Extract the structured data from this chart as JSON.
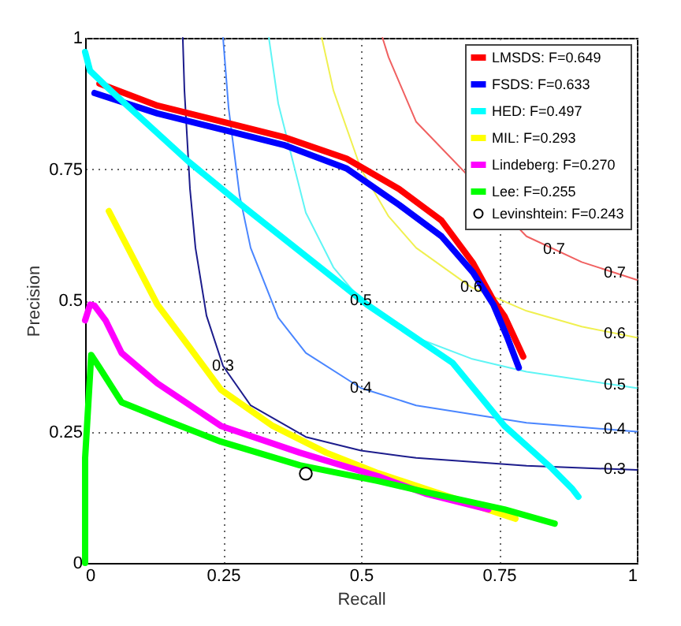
{
  "chart_data": {
    "type": "line",
    "xlabel": "Recall",
    "ylabel": "Precision",
    "xlim": [
      0,
      1
    ],
    "ylim": [
      0,
      1
    ],
    "xticks": [
      0,
      0.25,
      0.5,
      0.75,
      1
    ],
    "yticks": [
      0,
      0.25,
      0.5,
      0.75,
      1
    ],
    "grid": true,
    "legend": "top right",
    "series": [
      {
        "color": "#1c1c8c",
        "x": [
          0.177,
          0.18,
          0.19,
          0.2,
          0.22,
          0.25,
          0.3,
          0.4,
          0.5,
          0.6,
          0.8,
          1
        ],
        "values": [
          1,
          0.9,
          0.713,
          0.6,
          0.471,
          0.375,
          0.3,
          0.24,
          0.214,
          0.2,
          0.185,
          0.177
        ]
      },
      {
        "color": "#4a86ff",
        "x": [
          0.25,
          0.26,
          0.28,
          0.3,
          0.35,
          0.4,
          0.5,
          0.6,
          0.8,
          1
        ],
        "values": [
          1,
          0.867,
          0.7,
          0.6,
          0.467,
          0.4,
          0.333,
          0.3,
          0.267,
          0.25
        ]
      },
      {
        "color": "#5ff5f5",
        "x": [
          0.333,
          0.35,
          0.4,
          0.45,
          0.5,
          0.6,
          0.7,
          0.8,
          1
        ],
        "values": [
          1,
          0.875,
          0.667,
          0.563,
          0.5,
          0.429,
          0.389,
          0.364,
          0.333
        ]
      },
      {
        "color": "#f0f050",
        "x": [
          0.429,
          0.45,
          0.5,
          0.55,
          0.6,
          0.7,
          0.8,
          0.9,
          1
        ],
        "values": [
          1,
          0.9,
          0.75,
          0.66,
          0.6,
          0.525,
          0.48,
          0.45,
          0.429
        ]
      },
      {
        "color": "#f06060",
        "x": [
          0.539,
          0.55,
          0.6,
          0.65,
          0.7,
          0.8,
          0.9,
          1
        ],
        "values": [
          1,
          0.963,
          0.84,
          null,
          null,
          0.622,
          0.573,
          0.539
        ]
      },
      {
        "name": "LMSDS: F=0.649",
        "color": "#ff0000",
        "x": [
          0.026,
          0.131,
          0.246,
          0.36,
          0.474,
          0.569,
          0.646,
          0.703,
          0.74,
          0.76,
          0.794
        ],
        "values": [
          0.913,
          0.871,
          0.841,
          0.811,
          0.77,
          0.712,
          0.652,
          0.571,
          0.5,
          0.47,
          0.393
        ]
      },
      {
        "name": "FSDS: F=0.633",
        "color": "#0000ff",
        "x": [
          0.017,
          0.131,
          0.246,
          0.36,
          0.474,
          0.569,
          0.646,
          0.703,
          0.74,
          0.765,
          0.786
        ],
        "values": [
          0.895,
          0.856,
          0.826,
          0.796,
          0.751,
          0.682,
          0.622,
          0.553,
          0.492,
          0.43,
          0.372
        ]
      },
      {
        "name": "HED: F=0.497",
        "color": "#00ffff",
        "x": [
          0,
          0.009,
          0.046,
          0.189,
          0.283,
          0.511,
          0.666,
          0.76,
          0.846,
          0.883,
          0.894
        ],
        "values": [
          0.973,
          0.937,
          0.9,
          0.763,
          0.682,
          0.492,
          0.381,
          0.261,
          0.18,
          0.141,
          0.126
        ]
      },
      {
        "name": "MIL: F=0.293",
        "color": "#ffff00",
        "x": [
          0.043,
          0.131,
          0.189,
          0.246,
          0.34,
          0.437,
          0.531,
          0.617,
          0.78
        ],
        "values": [
          0.67,
          0.492,
          0.411,
          0.33,
          0.261,
          0.21,
          0.171,
          0.141,
          0.084
        ]
      },
      {
        "name": "Lindeberg: F=0.270",
        "color": "#ff00ff",
        "x": [
          0,
          0.009,
          0.017,
          0.037,
          0.066,
          0.131,
          0.246,
          0.389,
          0.531,
          0.617,
          0.731
        ],
        "values": [
          0.462,
          0.492,
          0.49,
          0.462,
          0.4,
          0.342,
          0.261,
          0.21,
          0.165,
          0.132,
          0.102
        ]
      },
      {
        "name": "Lee: F=0.255",
        "color": "#00ff00",
        "x": [
          0,
          0,
          0.011,
          0.026,
          0.066,
          0.151,
          0.246,
          0.389,
          0.531,
          0.617,
          0.76,
          0.851
        ],
        "values": [
          0,
          0.2,
          0.396,
          0.372,
          0.306,
          0.27,
          0.231,
          0.186,
          0.156,
          0.135,
          0.102,
          0.075
        ]
      },
      {
        "name": "Levinshtein: F=0.243",
        "type": "scatter",
        "marker": "circle",
        "color": "#000000",
        "x": [
          0.4
        ],
        "values": [
          0.17
        ]
      }
    ],
    "annotations": [
      {
        "text": "0.3",
        "x": 0.96,
        "y": 0.178
      },
      {
        "text": "0.4",
        "x": 0.96,
        "y": 0.256
      },
      {
        "text": "0.5",
        "x": 0.96,
        "y": 0.339
      },
      {
        "text": "0.6",
        "x": 0.96,
        "y": 0.437
      },
      {
        "text": "0.7",
        "x": 0.96,
        "y": 0.552
      },
      {
        "text": "0.3",
        "x": 0.25,
        "y": 0.375
      },
      {
        "text": "0.4",
        "x": 0.5,
        "y": 0.333
      },
      {
        "text": "0.5",
        "x": 0.5,
        "y": 0.5
      },
      {
        "text": "0.6",
        "x": 0.7,
        "y": 0.525
      },
      {
        "text": "0.7",
        "x": 0.85,
        "y": 0.598
      }
    ]
  }
}
